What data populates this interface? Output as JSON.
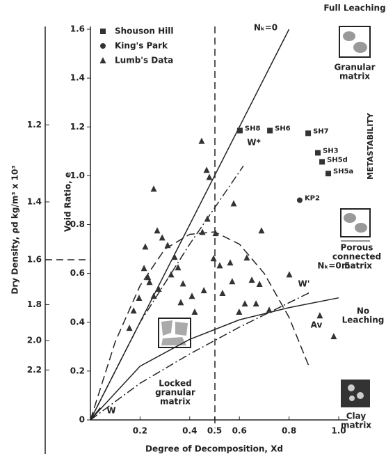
{
  "chart_data": {
    "type": "scatter",
    "x_label": "Degree of Decomposition, Xd",
    "y_label": "Void Ratio, e",
    "y2_label": "Dry Density, ρd kg/m³ x 10³",
    "xlim": [
      0,
      1.0
    ],
    "ylim": [
      0,
      1.6
    ],
    "xticks": [
      0.2,
      0.4,
      0.5,
      0.6,
      0.8,
      {
        "value": 1,
        "label": "1.0"
      }
    ],
    "yticks": [
      0,
      0.2,
      0.4,
      0.6,
      0.8,
      {
        "value": 1,
        "label": "1.0"
      },
      1.2,
      1.4,
      1.6
    ],
    "y2ticks": [
      1.2,
      1.4,
      1.6,
      1.8,
      {
        "value": 2,
        "label": "2.0"
      },
      2.2
    ],
    "series": [
      {
        "name": "Shouson Hill",
        "marker": "square",
        "color": "#333",
        "x": [
          0.602,
          0.723,
          0.877,
          0.916,
          0.933,
          0.958
        ],
        "values": [
          1.185,
          1.185,
          1.174,
          1.094,
          1.057,
          1.009
        ],
        "labels": [
          "SH8",
          "SH6",
          "SH7",
          "SH3",
          "SH5d",
          "SH5a"
        ]
      },
      {
        "name": "King's Park",
        "marker": "circle",
        "color": "#333",
        "x": [
          0.843
        ],
        "values": [
          0.9
        ],
        "labels": [
          "KP2"
        ]
      },
      {
        "name": "Lumb's Data",
        "marker": "triangle",
        "color": "#333",
        "x": [
          0.157,
          0.174,
          0.196,
          0.216,
          0.221,
          0.232,
          0.238,
          0.255,
          0.255,
          0.269,
          0.275,
          0.289,
          0.311,
          0.325,
          0.339,
          0.353,
          0.364,
          0.373,
          0.409,
          0.42,
          0.448,
          0.451,
          0.457,
          0.468,
          0.471,
          0.479,
          0.496,
          0.504,
          0.521,
          0.532,
          0.563,
          0.571,
          0.577,
          0.599,
          0.622,
          0.63,
          0.65,
          0.667,
          0.681,
          0.689,
          0.72,
          0.801,
          0.924,
          0.98
        ],
        "values": [
          0.376,
          0.447,
          0.499,
          0.621,
          0.709,
          0.584,
          0.564,
          0.507,
          0.946,
          0.775,
          0.536,
          0.746,
          0.715,
          0.595,
          0.667,
          0.624,
          0.481,
          0.558,
          0.507,
          0.442,
          1.142,
          0.769,
          0.53,
          1.023,
          0.823,
          0.994,
          0.661,
          0.764,
          0.632,
          0.519,
          0.644,
          0.567,
          0.886,
          0.442,
          0.476,
          0.664,
          0.573,
          0.476,
          0.556,
          0.775,
          0.45,
          0.595,
          0.427,
          0.342
        ]
      }
    ],
    "curves": [
      {
        "name": "Nₖ=0",
        "style": "solid",
        "x": [
          0,
          0.8
        ],
        "values": [
          0,
          1.6
        ]
      },
      {
        "name": "W*",
        "style": "dashdot",
        "x": [
          0,
          0.2,
          0.4,
          0.616
        ],
        "values": [
          0,
          0.4,
          0.72,
          1.04
        ]
      },
      {
        "name": "Av",
        "style": "dashed",
        "x": [
          0,
          0.1,
          0.2,
          0.3,
          0.4,
          0.5,
          0.6,
          0.7,
          0.8,
          0.88
        ],
        "values": [
          0,
          0.32,
          0.55,
          0.7,
          0.76,
          0.77,
          0.72,
          0.6,
          0.42,
          0.22
        ]
      },
      {
        "name": "W'",
        "style": "dashdot",
        "x": [
          0,
          0.2,
          0.4,
          0.6,
          0.8,
          0.88
        ],
        "values": [
          0,
          0.15,
          0.27,
          0.38,
          0.48,
          0.52
        ]
      },
      {
        "name": "Nₖ=0.5",
        "style": "solid",
        "x": [
          0,
          0.2,
          0.4,
          0.6,
          0.8,
          1.0
        ],
        "values": [
          0,
          0.22,
          0.33,
          0.41,
          0.46,
          0.5
        ]
      },
      {
        "name": "W",
        "style": "solid",
        "x": [
          0,
          0.04
        ],
        "values": [
          0,
          0.05
        ]
      }
    ],
    "annotations": [
      {
        "lines": [
          "Full Leaching"
        ]
      },
      {
        "lines": [
          "Granular",
          "matrix"
        ]
      },
      {
        "lines": [
          "METASTABILITY"
        ]
      },
      {
        "lines": [
          "Porous",
          "connected",
          "matrix"
        ]
      },
      {
        "lines": [
          "No",
          "Leaching"
        ]
      },
      {
        "lines": [
          "Clay",
          "matrix"
        ]
      },
      {
        "lines": [
          "Locked",
          "granular",
          "matrix"
        ]
      }
    ]
  }
}
